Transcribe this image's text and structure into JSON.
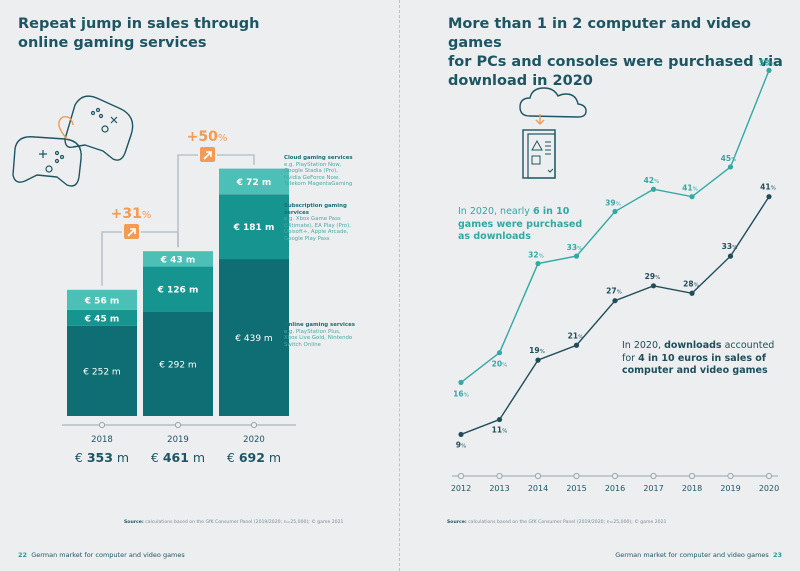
{
  "left": {
    "title_line1": "Repeat jump in sales through",
    "title_line2": "online gaming services",
    "page_number": "22",
    "footer_text": "German market for computer and video games",
    "source_label": "Source:",
    "source_text": "calculations based on the GfK Consumer Panel (2019/2020; n=25,000); © game 2021",
    "growth": [
      {
        "label": "+31",
        "pct": "%"
      },
      {
        "label": "+50",
        "pct": "%"
      }
    ],
    "legend": [
      {
        "heading": "Cloud gaming services",
        "body": [
          "e.g. PlayStation Now,",
          "Google Stadia (Pro),",
          "Nvidia GeForce Now,",
          "Telekom MagentaGaming"
        ]
      },
      {
        "heading": "Subscription gaming",
        "heading2": "services",
        "body": [
          "e.g. Xbox Game Pass",
          "(Ultimate), EA Play (Pro),",
          "Ubisoft+, Apple Arcade,",
          "Google Play Pass"
        ]
      },
      {
        "heading": "Online gaming services",
        "body": [
          "e.g. PlayStation Plus,",
          "Xbox Live Gold, Nintendo",
          "Switch Online"
        ]
      }
    ]
  },
  "right": {
    "title_line1": "More than 1 in 2 computer and video games",
    "title_line2": "for PCs and consoles were purchased via",
    "title_line3": "download in 2020",
    "page_number": "23",
    "footer_text": "German market for computer and video games",
    "source_label": "Source:",
    "source_text": "calculations based on the GfK Consumer Panel (2019/2020; n=25,000); © game 2021",
    "note1": {
      "l1a": "In 2020, nearly ",
      "l1b": "6 in 10",
      "l2": "games were purchased",
      "l3": "as downloads"
    },
    "note2": {
      "l1a": "In 2020, ",
      "l1b": "downloads",
      "l1c": " accounted",
      "l2a": "for ",
      "l2b": "4 in 10 euros in sales of",
      "l3": "computer and video games"
    }
  },
  "colors": {
    "online": "#0e6e73",
    "subscription": "#16948f",
    "cloud": "#4cbfb7",
    "orange": "#f39a53",
    "line_games": "#33a9a3",
    "line_sales": "#1f4e5a",
    "title": "#1e5562"
  },
  "chart_data": [
    {
      "type": "bar",
      "stacked": true,
      "categories": [
        "2018",
        "2019",
        "2020"
      ],
      "series": [
        {
          "name": "Online gaming services",
          "values": [
            252,
            292,
            439
          ],
          "labels": [
            "€ 252 m",
            "€ 292 m",
            "€ 439 m"
          ]
        },
        {
          "name": "Subscription gaming services",
          "values": [
            45,
            126,
            181
          ],
          "labels": [
            "€ 45 m",
            "€ 126 m",
            "€ 181 m"
          ]
        },
        {
          "name": "Cloud gaming services",
          "values": [
            56,
            43,
            72
          ],
          "labels": [
            "€ 56 m",
            "€ 43 m",
            "€ 72 m"
          ]
        }
      ],
      "totals": [
        {
          "prefix": "€ ",
          "value": "353",
          "unit": " m"
        },
        {
          "prefix": "€ ",
          "value": "461",
          "unit": " m"
        },
        {
          "prefix": "€ ",
          "value": "692",
          "unit": " m"
        }
      ],
      "ylim": [
        0,
        700
      ]
    },
    {
      "type": "line",
      "x": [
        "2012",
        "2013",
        "2014",
        "2015",
        "2016",
        "2017",
        "2018",
        "2019",
        "2020"
      ],
      "series": [
        {
          "values": [
            16,
            20,
            32,
            33,
            39,
            42,
            41,
            45,
            58
          ]
        },
        {
          "values": [
            9,
            11,
            19,
            21,
            27,
            29,
            28,
            33,
            41
          ]
        }
      ],
      "unit": "%",
      "ylim": [
        0,
        60
      ]
    }
  ]
}
